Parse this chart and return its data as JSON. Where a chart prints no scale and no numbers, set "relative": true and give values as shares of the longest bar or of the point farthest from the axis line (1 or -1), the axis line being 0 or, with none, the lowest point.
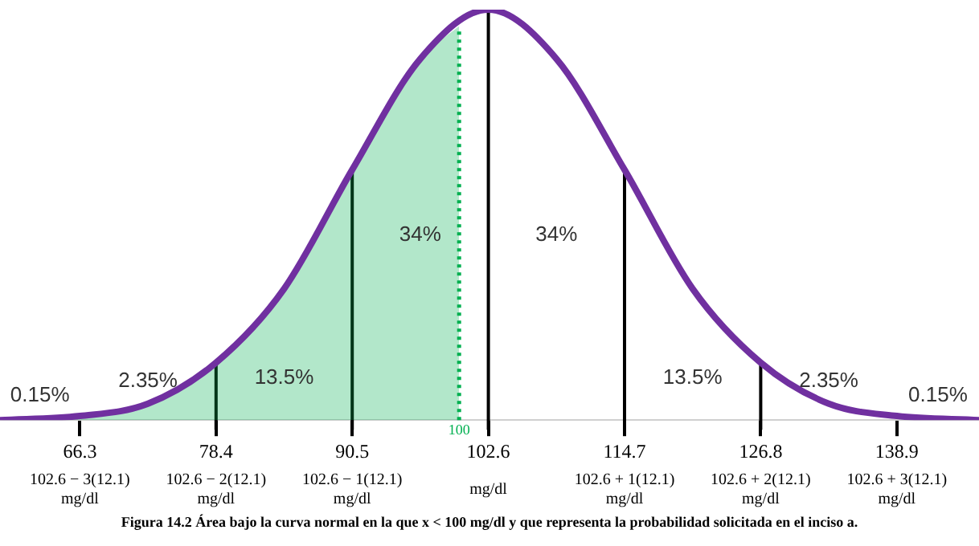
{
  "chart_data": {
    "type": "line",
    "relative": true,
    "x": [
      59.2,
      66.3,
      72.35,
      78.4,
      84.45,
      90.5,
      96.55,
      102.6,
      108.65,
      114.7,
      120.75,
      126.8,
      132.85,
      138.9,
      146.2
    ],
    "series": [
      {
        "color": "#7030a0",
        "values": [
          0,
          0.01,
          0.04,
          0.14,
          0.32,
          0.61,
          0.88,
          1,
          0.88,
          0.61,
          0.32,
          0.14,
          0.04,
          0.01,
          0
        ]
      },
      {
        "type": "area",
        "color": "#00b050",
        "x": [
          59.2,
          66.3,
          72.35,
          78.4,
          84.45,
          90.5,
          96.55,
          100
        ],
        "values": [
          0,
          0.01,
          0.04,
          0.14,
          0.32,
          0.61,
          0.88,
          0.96
        ]
      }
    ],
    "xlim": [
      59.2,
      146.2
    ],
    "xticks": [
      66.3,
      78.4,
      90.5,
      102.6,
      114.7,
      126.8,
      138.9
    ],
    "ref_lines": [
      {
        "axis": "x",
        "value": 78.4,
        "color": "#000000"
      },
      {
        "axis": "x",
        "value": 90.5,
        "color": "#000000"
      },
      {
        "axis": "x",
        "value": 102.6,
        "color": "#000000"
      },
      {
        "axis": "x",
        "value": 114.7,
        "color": "#000000"
      },
      {
        "axis": "x",
        "value": 126.8,
        "color": "#000000"
      },
      {
        "axis": "x",
        "value": 100,
        "label": "100",
        "color": "#00b050",
        "line_style": "dotted"
      }
    ],
    "grid": false,
    "legend": false,
    "marker": "none",
    "line_style": "solid",
    "annotations": [
      "0.15%",
      "2.35%",
      "13.5%",
      "34%",
      "34%",
      "13.5%",
      "2.35%",
      "0.15%",
      "102.6 − 3(12.1)\nmg/dl",
      "102.6 − 2(12.1)\nmg/dl",
      "102.6 − 1(12.1)\nmg/dl",
      "mg/dl",
      "102.6 + 1(12.1)\nmg/dl",
      "102.6 + 2(12.1)\nmg/dl",
      "102.6 + 3(12.1)\nmg/dl",
      "Figura 14.2 Área bajo la curva normal en la que x < 100 mg/dl  y que representa la probabilidad solicitada en el inciso a."
    ]
  }
}
